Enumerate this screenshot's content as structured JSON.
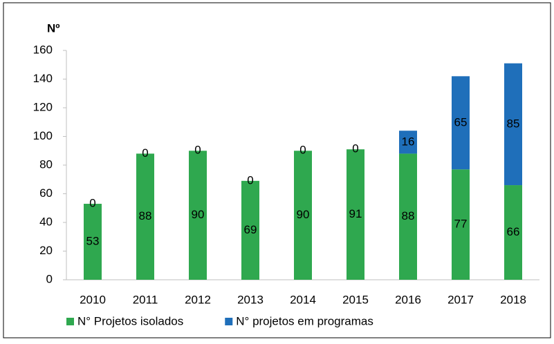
{
  "chart_data": {
    "type": "stacked_bar",
    "y_axis_label": "Nº",
    "categories": [
      "2010",
      "2011",
      "2012",
      "2013",
      "2014",
      "2015",
      "2016",
      "2017",
      "2018"
    ],
    "series": [
      {
        "name": "N° Projetos isolados",
        "color": "#2fa84f",
        "values": [
          53,
          88,
          90,
          69,
          90,
          91,
          88,
          77,
          66
        ]
      },
      {
        "name": "N° projetos em programas",
        "color": "#1f6fba",
        "values": [
          0,
          0,
          0,
          0,
          0,
          0,
          16,
          65,
          85
        ]
      }
    ],
    "ylim": [
      0,
      160
    ],
    "yticks": [
      0,
      20,
      40,
      60,
      80,
      100,
      120,
      140,
      160
    ],
    "grid": false,
    "legend": "bottom-left"
  }
}
